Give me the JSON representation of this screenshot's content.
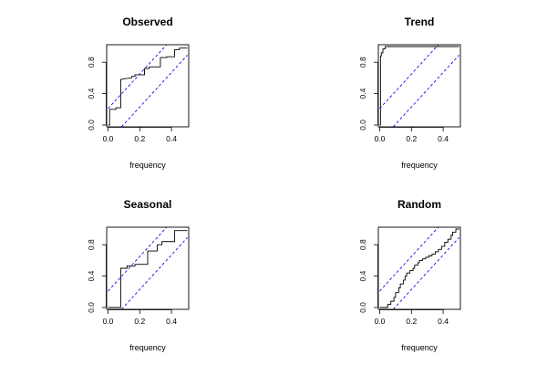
{
  "chart_data": [
    {
      "type": "line",
      "title": "Observed",
      "xlabel": "frequency",
      "ylabel": "",
      "xlim": [
        0,
        0.5
      ],
      "ylim": [
        0,
        1
      ],
      "xticks": [
        "0.0",
        "0.2",
        "0.4"
      ],
      "yticks": [
        "0.0",
        "0.4",
        "0.8"
      ],
      "grid": false,
      "series": [
        {
          "kind": "step",
          "color": "#000000",
          "x": [
            0.0,
            0.01,
            0.01,
            0.05,
            0.05,
            0.08,
            0.08,
            0.1,
            0.15,
            0.15,
            0.17,
            0.17,
            0.23,
            0.23,
            0.26,
            0.26,
            0.33,
            0.33,
            0.37,
            0.37,
            0.42,
            0.42,
            0.45,
            0.45,
            0.5
          ],
          "y": [
            0.0,
            0.0,
            0.2,
            0.2,
            0.22,
            0.22,
            0.58,
            0.59,
            0.6,
            0.62,
            0.62,
            0.64,
            0.64,
            0.72,
            0.72,
            0.74,
            0.74,
            0.86,
            0.86,
            0.87,
            0.87,
            0.96,
            0.96,
            0.98,
            0.98
          ]
        },
        {
          "kind": "dashed",
          "color": "#0000ee",
          "x": [
            0.0,
            0.5
          ],
          "y": [
            0.21,
            1.31
          ]
        },
        {
          "kind": "dashed",
          "color": "#0000ee",
          "x": [
            0.0,
            0.5
          ],
          "y": [
            -0.21,
            0.89
          ]
        }
      ]
    },
    {
      "type": "line",
      "title": "Trend",
      "xlabel": "frequency",
      "ylabel": "",
      "xlim": [
        0,
        0.5
      ],
      "ylim": [
        0,
        1
      ],
      "xticks": [
        "0.0",
        "0.2",
        "0.4"
      ],
      "yticks": [
        "0.0",
        "0.4",
        "0.8"
      ],
      "grid": false,
      "series": [
        {
          "kind": "step",
          "color": "#000000",
          "x": [
            0.0,
            0.005,
            0.005,
            0.01,
            0.01,
            0.02,
            0.02,
            0.035,
            0.035,
            0.5
          ],
          "y": [
            0.0,
            0.0,
            0.88,
            0.88,
            0.92,
            0.92,
            0.97,
            0.97,
            1.0,
            1.0
          ]
        },
        {
          "kind": "dashed",
          "color": "#0000ee",
          "x": [
            0.0,
            0.5
          ],
          "y": [
            0.21,
            1.31
          ]
        },
        {
          "kind": "dashed",
          "color": "#0000ee",
          "x": [
            0.0,
            0.5
          ],
          "y": [
            -0.21,
            0.89
          ]
        }
      ]
    },
    {
      "type": "line",
      "title": "Seasonal",
      "xlabel": "frequency",
      "ylabel": "",
      "xlim": [
        0,
        0.5
      ],
      "ylim": [
        0,
        1
      ],
      "xticks": [
        "0.0",
        "0.2",
        "0.4"
      ],
      "yticks": [
        "0.0",
        "0.4",
        "0.8"
      ],
      "grid": false,
      "series": [
        {
          "kind": "step",
          "color": "#000000",
          "x": [
            0.0,
            0.08,
            0.08,
            0.12,
            0.12,
            0.17,
            0.17,
            0.25,
            0.25,
            0.31,
            0.31,
            0.34,
            0.34,
            0.42,
            0.42,
            0.5
          ],
          "y": [
            0.0,
            0.0,
            0.5,
            0.5,
            0.53,
            0.53,
            0.55,
            0.55,
            0.72,
            0.72,
            0.8,
            0.8,
            0.84,
            0.84,
            0.98,
            0.98
          ]
        },
        {
          "kind": "dashed",
          "color": "#0000ee",
          "x": [
            0.0,
            0.5
          ],
          "y": [
            0.21,
            1.31
          ]
        },
        {
          "kind": "dashed",
          "color": "#0000ee",
          "x": [
            0.0,
            0.5
          ],
          "y": [
            -0.21,
            0.89
          ]
        }
      ]
    },
    {
      "type": "line",
      "title": "Random",
      "xlabel": "frequency",
      "ylabel": "",
      "xlim": [
        0,
        0.5
      ],
      "ylim": [
        0,
        1
      ],
      "xticks": [
        "0.0",
        "0.2",
        "0.4"
      ],
      "yticks": [
        "0.0",
        "0.4",
        "0.8"
      ],
      "grid": false,
      "series": [
        {
          "kind": "step",
          "color": "#000000",
          "x": [
            0.0,
            0.05,
            0.05,
            0.07,
            0.07,
            0.09,
            0.09,
            0.1,
            0.1,
            0.12,
            0.12,
            0.13,
            0.13,
            0.15,
            0.15,
            0.16,
            0.16,
            0.17,
            0.17,
            0.19,
            0.19,
            0.21,
            0.21,
            0.22,
            0.22,
            0.24,
            0.24,
            0.25,
            0.25,
            0.27,
            0.27,
            0.29,
            0.29,
            0.31,
            0.31,
            0.33,
            0.33,
            0.35,
            0.35,
            0.37,
            0.37,
            0.39,
            0.39,
            0.41,
            0.41,
            0.43,
            0.43,
            0.45,
            0.45,
            0.46,
            0.46,
            0.48,
            0.48,
            0.5
          ],
          "y": [
            0.0,
            0.0,
            0.04,
            0.04,
            0.08,
            0.08,
            0.13,
            0.13,
            0.19,
            0.19,
            0.25,
            0.25,
            0.3,
            0.3,
            0.35,
            0.35,
            0.4,
            0.4,
            0.44,
            0.44,
            0.47,
            0.47,
            0.5,
            0.5,
            0.54,
            0.54,
            0.57,
            0.57,
            0.6,
            0.6,
            0.62,
            0.62,
            0.64,
            0.64,
            0.66,
            0.66,
            0.68,
            0.68,
            0.71,
            0.71,
            0.74,
            0.74,
            0.78,
            0.78,
            0.83,
            0.83,
            0.87,
            0.87,
            0.92,
            0.92,
            0.96,
            0.96,
            1.0,
            1.0
          ]
        },
        {
          "kind": "dashed",
          "color": "#0000ee",
          "x": [
            0.0,
            0.5
          ],
          "y": [
            0.21,
            1.31
          ]
        },
        {
          "kind": "dashed",
          "color": "#0000ee",
          "x": [
            0.0,
            0.5
          ],
          "y": [
            -0.21,
            0.89
          ]
        }
      ]
    }
  ]
}
